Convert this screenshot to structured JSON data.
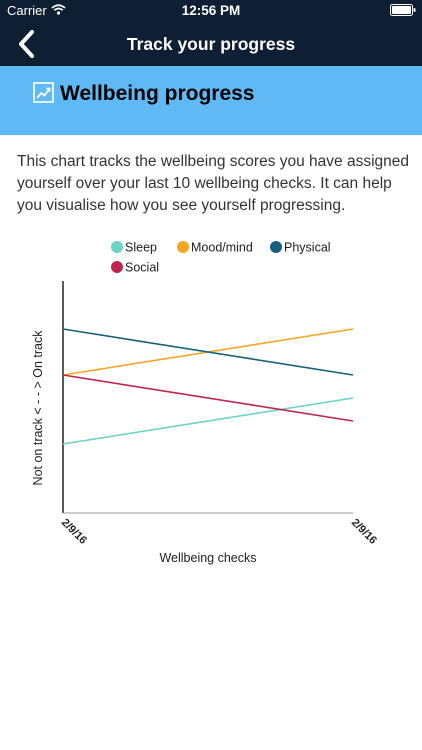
{
  "status_bar": {
    "carrier": "Carrier",
    "time": "12:56 PM",
    "wifi_icon": "wifi-icon",
    "battery_icon": "battery-icon"
  },
  "nav": {
    "back_icon": "chevron-left-icon",
    "title": "Track your progress"
  },
  "section": {
    "icon": "trending-up-icon",
    "title": "Wellbeing progress"
  },
  "description": "This chart tracks the wellbeing scores you have assigned yourself over your last 10 wellbeing checks. It can help you visualise how you see yourself progressing.",
  "colors": {
    "header_bg": "#0f1f33",
    "accent": "#5fb9f5"
  },
  "chart_data": {
    "type": "line",
    "title": "",
    "xlabel": "Wellbeing checks",
    "ylabel": "Not on track < - - > On track",
    "x": [
      "2/9/16",
      "2/9/16"
    ],
    "ylim": [
      0,
      10
    ],
    "grid": false,
    "legend_position": "top",
    "series": [
      {
        "name": "Sleep",
        "color": "#6dd3c4",
        "values": [
          3,
          5
        ]
      },
      {
        "name": "Mood/mind",
        "color": "#f5a623",
        "values": [
          6,
          8
        ]
      },
      {
        "name": "Physical",
        "color": "#15607c",
        "values": [
          8,
          6
        ]
      },
      {
        "name": "Social",
        "color": "#c0264b",
        "values": [
          6,
          4
        ]
      }
    ]
  }
}
